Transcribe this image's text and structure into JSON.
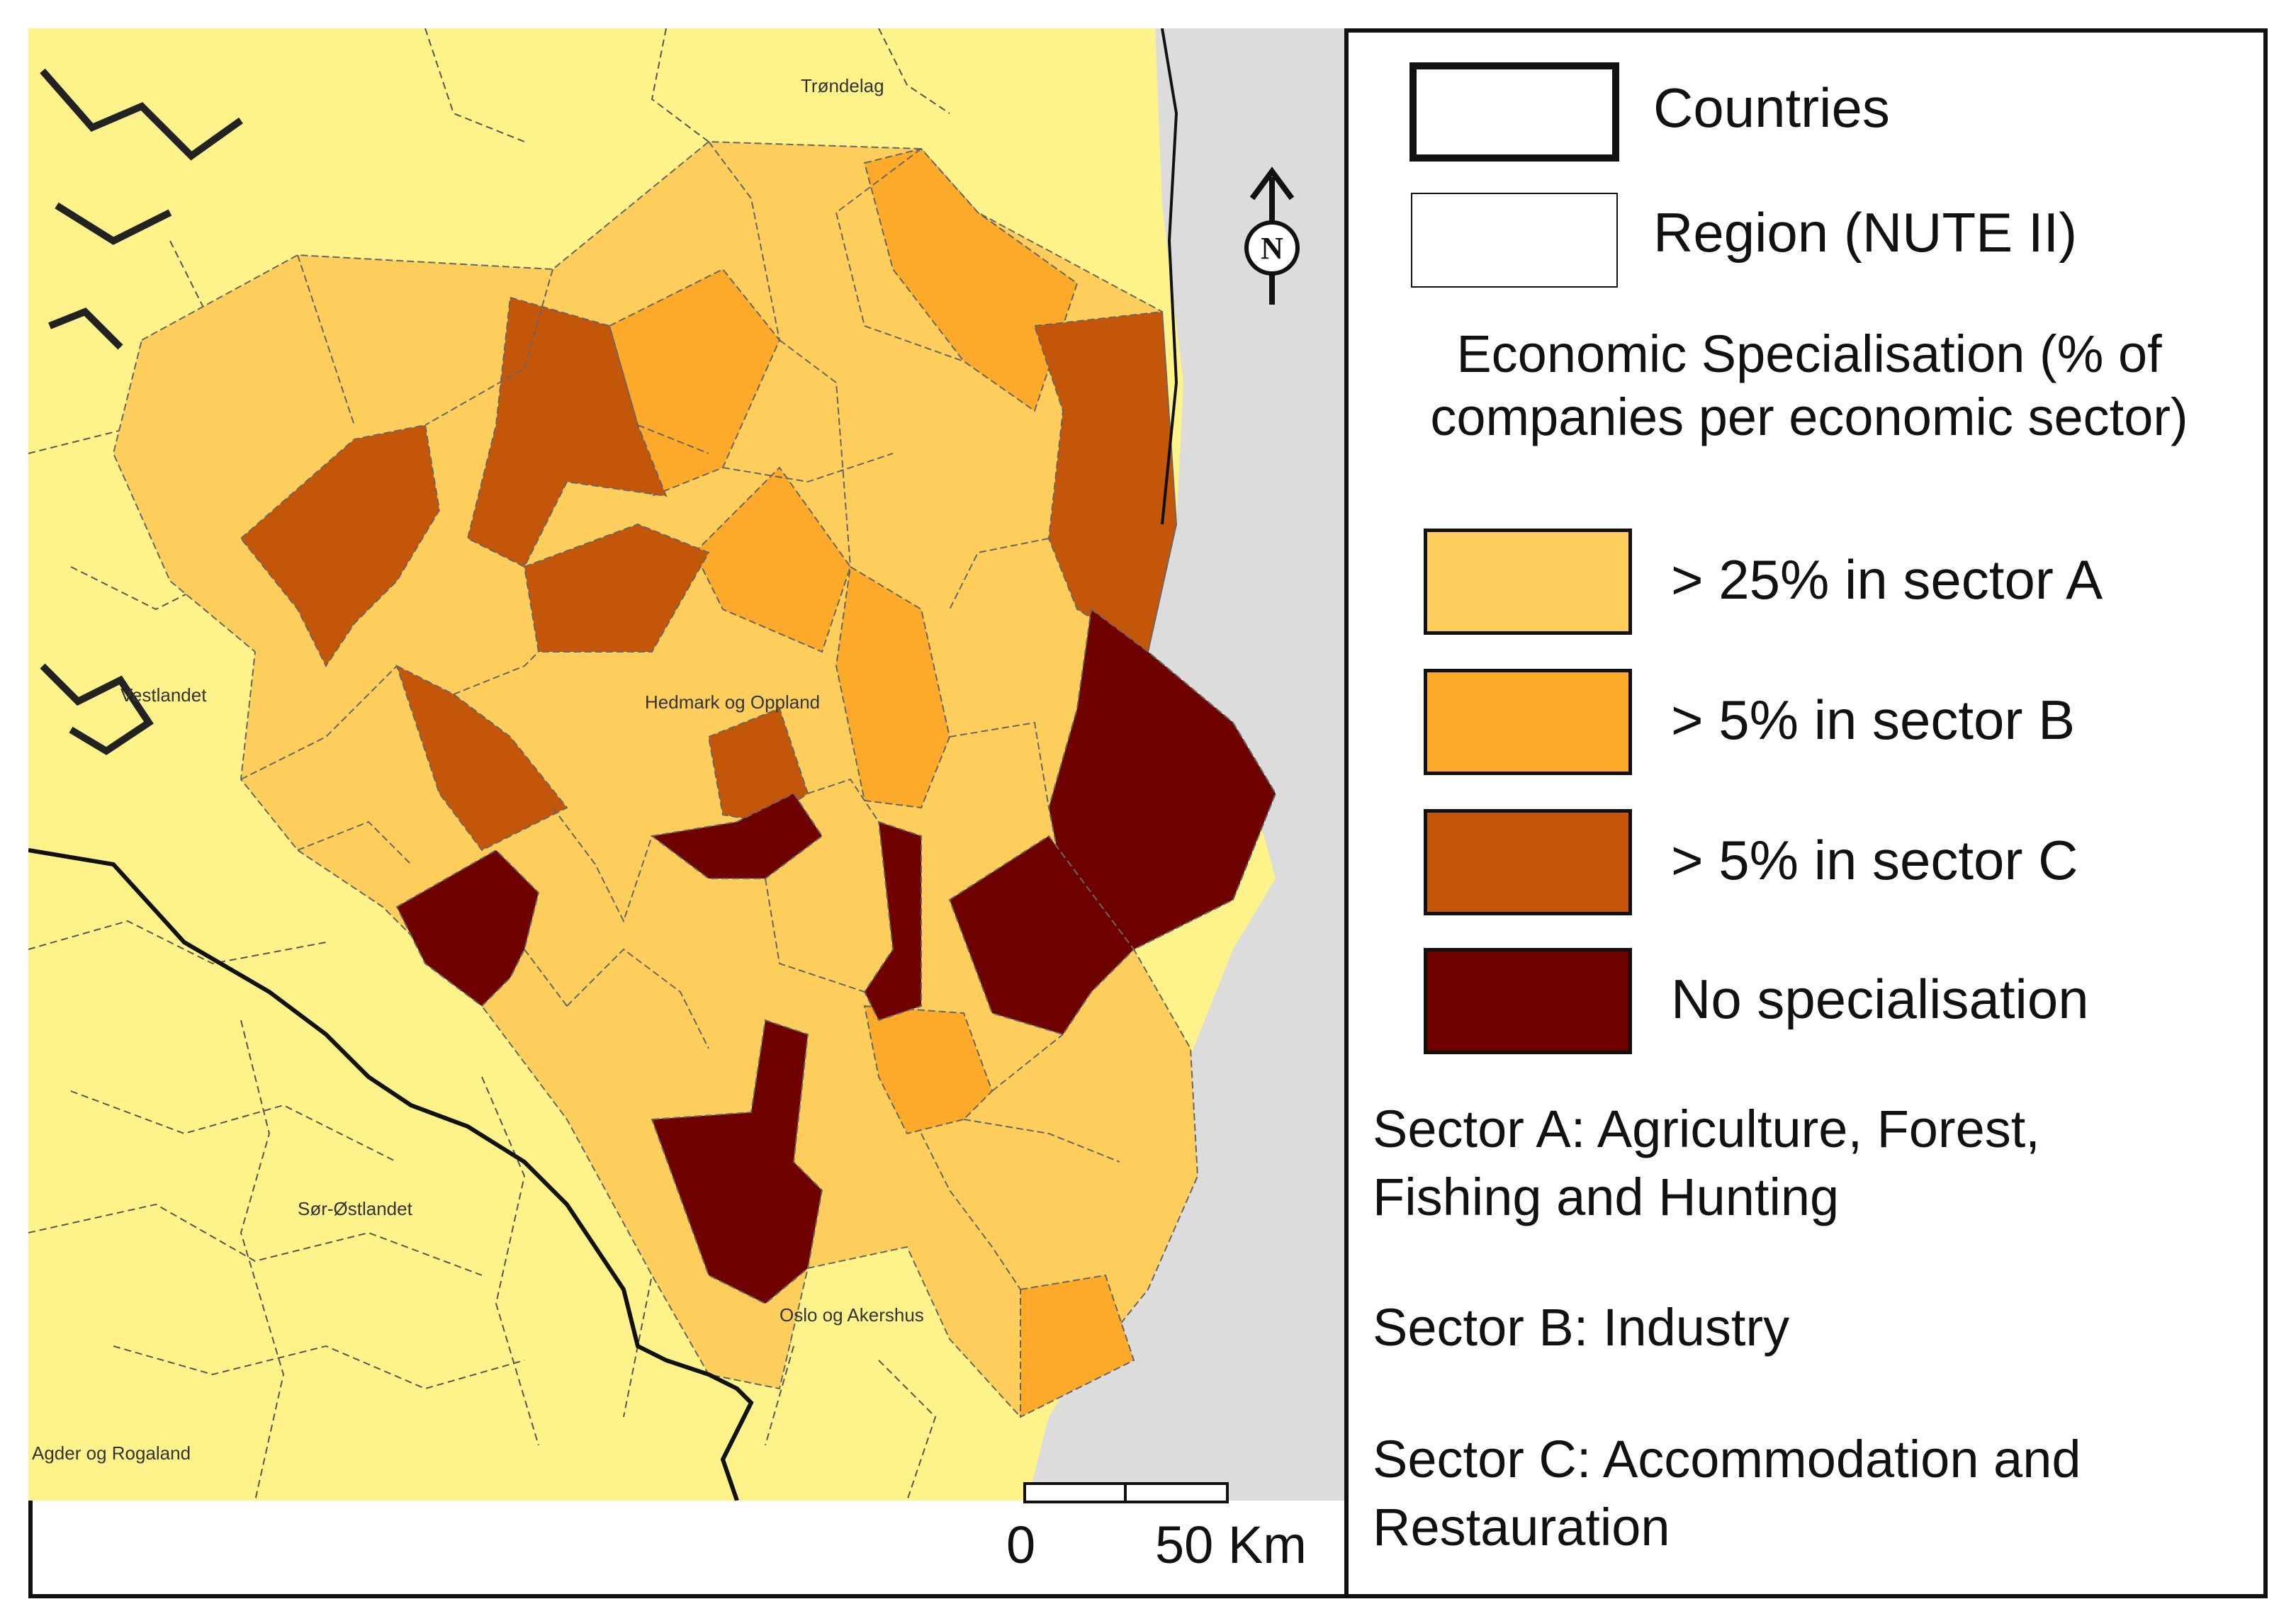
{
  "map": {
    "place_labels": [
      "Trøndelag",
      "Vestlandet",
      "Hedmark og Oppland",
      "Sør-Østlandet",
      "Oslo og Akershus",
      "Agder og Rogaland"
    ],
    "north_arrow": "N",
    "colors": {
      "country": "#fdf38a",
      "sea": "#dcdcdc",
      "sector_a": "#fece5c",
      "sector_b": "#fda92a",
      "sector_c": "#c4560a",
      "no_specialisation": "#6e0000",
      "boundary": "#555555"
    },
    "scale": {
      "start": "0",
      "end": "50 Km"
    }
  },
  "legend": {
    "countries": "Countries",
    "region": "Region (NUTE II)",
    "title": "Economic Specialisation (% of\ncompanies per economic sector)",
    "classes": [
      {
        "label": "> 25% in sector A",
        "color": "#fece5c"
      },
      {
        "label": "> 5% in sector B",
        "color": "#fda92a"
      },
      {
        "label": "> 5% in sector C",
        "color": "#c4560a"
      },
      {
        "label": "No specialisation",
        "color": "#6e0000"
      }
    ],
    "notes": [
      "Sector A: Agriculture, Forest,\nFishing and Hunting",
      "Sector B: Industry",
      "Sector C: Accommodation and\nRestauration"
    ]
  }
}
